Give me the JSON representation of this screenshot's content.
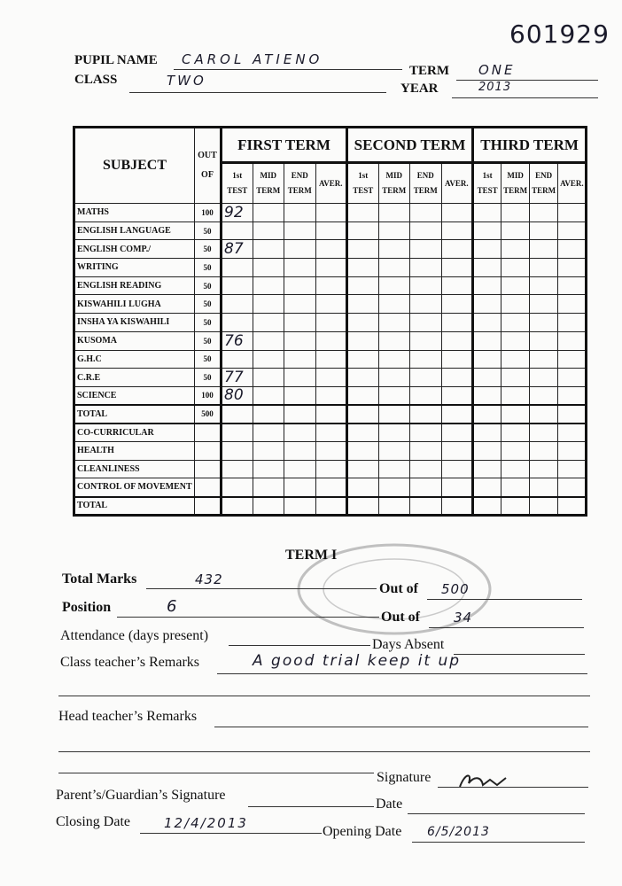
{
  "serial": "601929",
  "header": {
    "pupil_name_label": "PUPIL NAME",
    "pupil_name": "CAROL ATIENO",
    "term_label": "TERM",
    "term": "ONE",
    "class_label": "CLASS",
    "class": "TWO",
    "year_label": "YEAR",
    "year": "2013"
  },
  "table": {
    "subject_header": "SUBJECT",
    "out_of_header": "OUT OF",
    "terms": [
      "FIRST TERM",
      "SECOND TERM",
      "THIRD TERM"
    ],
    "sub_columns": [
      "1st TEST",
      "MID TERM",
      "END TERM",
      "AVER."
    ],
    "rows": [
      {
        "subject": "MATHS",
        "out_of": 100,
        "first_test": 92
      },
      {
        "subject": "ENGLISH LANGUAGE",
        "out_of": 50
      },
      {
        "subject": "ENGLISH COMP./",
        "out_of": 50,
        "first_test": 87
      },
      {
        "subject": "WRITING",
        "out_of": 50
      },
      {
        "subject": "ENGLISH READING",
        "out_of": 50
      },
      {
        "subject": "KISWAHILI LUGHA",
        "out_of": 50
      },
      {
        "subject": "INSHA YA KISWAHILI",
        "out_of": 50
      },
      {
        "subject": "KUSOMA",
        "out_of": 50,
        "first_test": 76
      },
      {
        "subject": "G.H.C",
        "out_of": 50
      },
      {
        "subject": "C.R.E",
        "out_of": 50,
        "first_test": 77
      },
      {
        "subject": "SCIENCE",
        "out_of": 100,
        "first_test": 80
      },
      {
        "subject": "TOTAL",
        "out_of": 500
      },
      {
        "subject": "CO-CURRICULAR"
      },
      {
        "subject": "HEALTH"
      },
      {
        "subject": "CLEANLINESS"
      },
      {
        "subject": "CONTROL OF MOVEMENT"
      },
      {
        "subject": "TOTAL"
      }
    ]
  },
  "footer": {
    "heading": "TERM I",
    "total_marks_label": "Total Marks",
    "total_marks": 432,
    "out_of_label": "Out of",
    "total_out_of": 500,
    "position_label": "Position",
    "position": 6,
    "position_out_of": 34,
    "attendance_label": "Attendance (days present)",
    "days_absent_label": "Days Absent",
    "class_teacher_label": "Class teacher’s Remarks",
    "class_teacher_remarks": "A good trial keep it up",
    "head_teacher_label": "Head teacher’s Remarks",
    "signature_label": "Signature",
    "parent_signature_label": "Parent’s/Guardian’s Signature",
    "date_label": "Date",
    "closing_date_label": "Closing Date",
    "closing_date": "12/4/2013",
    "opening_date_label": "Opening Date",
    "opening_date": "6/5/2013"
  }
}
